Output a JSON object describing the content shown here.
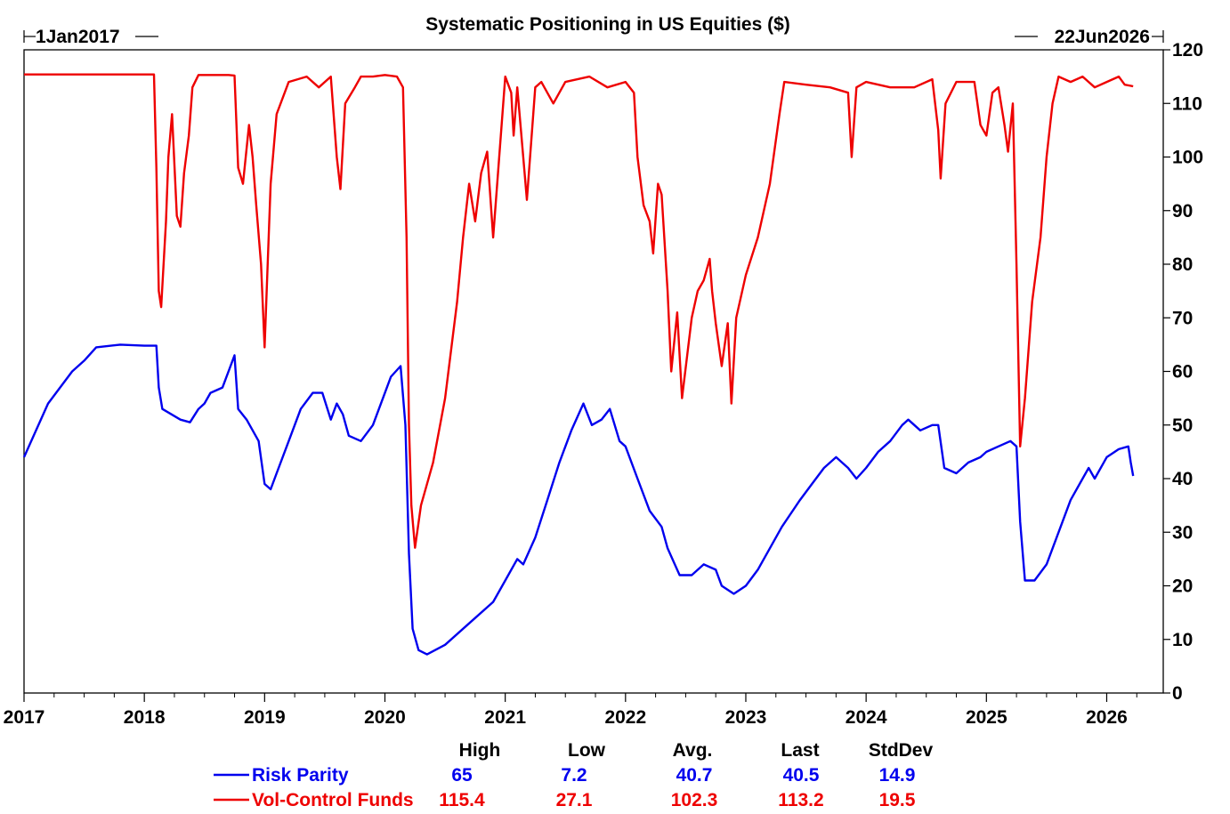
{
  "chart_data": {
    "type": "line",
    "title": "Systematic Positioning in US Equities ($)",
    "range_start_label": "1Jan2017",
    "range_end_label": "22Jun2026",
    "x_ticks": [
      "2017",
      "2018",
      "2019",
      "2020",
      "2021",
      "2022",
      "2023",
      "2024",
      "2025",
      "2026"
    ],
    "x_start_year": 2017,
    "x_end_year": 2026.47,
    "ylim": [
      0,
      120
    ],
    "y_ticks": [
      0,
      10,
      20,
      30,
      40,
      50,
      60,
      70,
      80,
      90,
      100,
      110,
      120
    ],
    "y_axis_position": "right",
    "grid": false,
    "stats_headers": [
      "High",
      "Low",
      "Avg.",
      "Last",
      "StdDev"
    ],
    "series": [
      {
        "name": "Risk Parity",
        "color": "#0000ee",
        "stats": [
          "65",
          "7.2",
          "40.7",
          "40.5",
          "14.9"
        ],
        "points": [
          [
            2017.0,
            44
          ],
          [
            2017.1,
            49
          ],
          [
            2017.2,
            54
          ],
          [
            2017.3,
            57
          ],
          [
            2017.4,
            60
          ],
          [
            2017.5,
            62
          ],
          [
            2017.6,
            64.5
          ],
          [
            2017.8,
            65
          ],
          [
            2018.0,
            64.8
          ],
          [
            2018.1,
            64.8
          ],
          [
            2018.12,
            57
          ],
          [
            2018.15,
            53
          ],
          [
            2018.3,
            51
          ],
          [
            2018.38,
            50.5
          ],
          [
            2018.45,
            53
          ],
          [
            2018.5,
            54
          ],
          [
            2018.55,
            56
          ],
          [
            2018.65,
            57
          ],
          [
            2018.75,
            63
          ],
          [
            2018.78,
            53
          ],
          [
            2018.85,
            51
          ],
          [
            2018.95,
            47
          ],
          [
            2019.0,
            39
          ],
          [
            2019.05,
            38
          ],
          [
            2019.1,
            41
          ],
          [
            2019.2,
            47
          ],
          [
            2019.3,
            53
          ],
          [
            2019.4,
            56
          ],
          [
            2019.48,
            56
          ],
          [
            2019.55,
            51
          ],
          [
            2019.6,
            54
          ],
          [
            2019.65,
            52
          ],
          [
            2019.7,
            48
          ],
          [
            2019.8,
            47
          ],
          [
            2019.9,
            50
          ],
          [
            2020.0,
            56
          ],
          [
            2020.05,
            59
          ],
          [
            2020.13,
            61
          ],
          [
            2020.17,
            50
          ],
          [
            2020.2,
            26
          ],
          [
            2020.23,
            12
          ],
          [
            2020.28,
            8
          ],
          [
            2020.35,
            7.2
          ],
          [
            2020.5,
            9
          ],
          [
            2020.7,
            13
          ],
          [
            2020.9,
            17
          ],
          [
            2021.0,
            21
          ],
          [
            2021.1,
            25
          ],
          [
            2021.15,
            24
          ],
          [
            2021.25,
            29
          ],
          [
            2021.35,
            36
          ],
          [
            2021.45,
            43
          ],
          [
            2021.55,
            49
          ],
          [
            2021.65,
            54
          ],
          [
            2021.72,
            50
          ],
          [
            2021.8,
            51
          ],
          [
            2021.87,
            53
          ],
          [
            2021.95,
            47
          ],
          [
            2022.0,
            46
          ],
          [
            2022.1,
            40
          ],
          [
            2022.2,
            34
          ],
          [
            2022.3,
            31
          ],
          [
            2022.35,
            27
          ],
          [
            2022.45,
            22
          ],
          [
            2022.55,
            22
          ],
          [
            2022.65,
            24
          ],
          [
            2022.75,
            23
          ],
          [
            2022.8,
            20
          ],
          [
            2022.9,
            18.5
          ],
          [
            2023.0,
            20
          ],
          [
            2023.1,
            23
          ],
          [
            2023.2,
            27
          ],
          [
            2023.3,
            31
          ],
          [
            2023.45,
            36
          ],
          [
            2023.55,
            39
          ],
          [
            2023.65,
            42
          ],
          [
            2023.75,
            44
          ],
          [
            2023.85,
            42
          ],
          [
            2023.92,
            40
          ],
          [
            2024.0,
            42
          ],
          [
            2024.1,
            45
          ],
          [
            2024.2,
            47
          ],
          [
            2024.3,
            50
          ],
          [
            2024.35,
            51
          ],
          [
            2024.45,
            49
          ],
          [
            2024.55,
            50
          ],
          [
            2024.6,
            50
          ],
          [
            2024.65,
            42
          ],
          [
            2024.75,
            41
          ],
          [
            2024.85,
            43
          ],
          [
            2024.95,
            44
          ],
          [
            2025.0,
            45
          ],
          [
            2025.1,
            46
          ],
          [
            2025.2,
            47
          ],
          [
            2025.25,
            46
          ],
          [
            2025.28,
            32
          ],
          [
            2025.32,
            21
          ],
          [
            2025.4,
            21
          ],
          [
            2025.5,
            24
          ],
          [
            2025.6,
            30
          ],
          [
            2025.7,
            36
          ],
          [
            2025.8,
            40
          ],
          [
            2025.85,
            42
          ],
          [
            2025.9,
            40
          ],
          [
            2026.0,
            44
          ],
          [
            2026.1,
            45.5
          ],
          [
            2026.18,
            46
          ],
          [
            2026.2,
            43
          ],
          [
            2026.22,
            40.5
          ]
        ]
      },
      {
        "name": "Vol-Control Funds",
        "color": "#ee0000",
        "stats": [
          "115.4",
          "27.1",
          "102.3",
          "113.2",
          "19.5"
        ],
        "points": [
          [
            2017.0,
            115.4
          ],
          [
            2017.3,
            115.4
          ],
          [
            2017.7,
            115.4
          ],
          [
            2018.08,
            115.4
          ],
          [
            2018.1,
            98
          ],
          [
            2018.12,
            75
          ],
          [
            2018.14,
            72
          ],
          [
            2018.18,
            88
          ],
          [
            2018.2,
            100
          ],
          [
            2018.23,
            108
          ],
          [
            2018.27,
            89
          ],
          [
            2018.3,
            87
          ],
          [
            2018.33,
            97
          ],
          [
            2018.37,
            104
          ],
          [
            2018.4,
            113
          ],
          [
            2018.45,
            115.3
          ],
          [
            2018.55,
            115.3
          ],
          [
            2018.7,
            115.3
          ],
          [
            2018.75,
            115.2
          ],
          [
            2018.78,
            98
          ],
          [
            2018.82,
            95
          ],
          [
            2018.87,
            106
          ],
          [
            2018.9,
            100
          ],
          [
            2018.93,
            91
          ],
          [
            2018.97,
            80
          ],
          [
            2019.0,
            64.5
          ],
          [
            2019.05,
            95
          ],
          [
            2019.1,
            108
          ],
          [
            2019.2,
            114
          ],
          [
            2019.35,
            115
          ],
          [
            2019.45,
            113
          ],
          [
            2019.55,
            115
          ],
          [
            2019.6,
            100
          ],
          [
            2019.63,
            94
          ],
          [
            2019.67,
            110
          ],
          [
            2019.75,
            113
          ],
          [
            2019.8,
            115
          ],
          [
            2019.9,
            115
          ],
          [
            2020.0,
            115.3
          ],
          [
            2020.1,
            115
          ],
          [
            2020.15,
            113
          ],
          [
            2020.18,
            85
          ],
          [
            2020.2,
            50
          ],
          [
            2020.22,
            35
          ],
          [
            2020.25,
            27.1
          ],
          [
            2020.3,
            35
          ],
          [
            2020.4,
            43
          ],
          [
            2020.5,
            55
          ],
          [
            2020.6,
            73
          ],
          [
            2020.65,
            85
          ],
          [
            2020.7,
            95
          ],
          [
            2020.75,
            88
          ],
          [
            2020.8,
            97
          ],
          [
            2020.85,
            101
          ],
          [
            2020.9,
            85
          ],
          [
            2020.95,
            100
          ],
          [
            2021.0,
            115
          ],
          [
            2021.05,
            112
          ],
          [
            2021.07,
            104
          ],
          [
            2021.1,
            113
          ],
          [
            2021.15,
            100
          ],
          [
            2021.18,
            92
          ],
          [
            2021.25,
            113
          ],
          [
            2021.3,
            114
          ],
          [
            2021.4,
            110
          ],
          [
            2021.5,
            114
          ],
          [
            2021.7,
            115
          ],
          [
            2021.85,
            113
          ],
          [
            2022.0,
            114
          ],
          [
            2022.07,
            112
          ],
          [
            2022.1,
            100
          ],
          [
            2022.15,
            91
          ],
          [
            2022.2,
            88
          ],
          [
            2022.23,
            82
          ],
          [
            2022.27,
            95
          ],
          [
            2022.3,
            93
          ],
          [
            2022.35,
            75
          ],
          [
            2022.38,
            60
          ],
          [
            2022.43,
            71
          ],
          [
            2022.47,
            55
          ],
          [
            2022.55,
            70
          ],
          [
            2022.6,
            75
          ],
          [
            2022.65,
            77
          ],
          [
            2022.7,
            81
          ],
          [
            2022.72,
            75
          ],
          [
            2022.75,
            69
          ],
          [
            2022.8,
            61
          ],
          [
            2022.85,
            69
          ],
          [
            2022.88,
            54
          ],
          [
            2022.92,
            70
          ],
          [
            2023.0,
            78
          ],
          [
            2023.1,
            85
          ],
          [
            2023.2,
            95
          ],
          [
            2023.28,
            108
          ],
          [
            2023.32,
            114
          ],
          [
            2023.5,
            113.5
          ],
          [
            2023.7,
            113
          ],
          [
            2023.85,
            112
          ],
          [
            2023.88,
            100
          ],
          [
            2023.92,
            113
          ],
          [
            2024.0,
            114
          ],
          [
            2024.2,
            113
          ],
          [
            2024.4,
            113
          ],
          [
            2024.55,
            114.5
          ],
          [
            2024.6,
            105
          ],
          [
            2024.62,
            96
          ],
          [
            2024.66,
            110
          ],
          [
            2024.75,
            114
          ],
          [
            2024.85,
            114
          ],
          [
            2024.9,
            114
          ],
          [
            2024.95,
            106
          ],
          [
            2025.0,
            104
          ],
          [
            2025.05,
            112
          ],
          [
            2025.1,
            113
          ],
          [
            2025.15,
            106
          ],
          [
            2025.18,
            101
          ],
          [
            2025.22,
            110
          ],
          [
            2025.25,
            80
          ],
          [
            2025.28,
            46
          ],
          [
            2025.32,
            55
          ],
          [
            2025.38,
            73
          ],
          [
            2025.45,
            85
          ],
          [
            2025.5,
            100
          ],
          [
            2025.55,
            110
          ],
          [
            2025.6,
            115
          ],
          [
            2025.7,
            114
          ],
          [
            2025.8,
            115
          ],
          [
            2025.9,
            113
          ],
          [
            2026.0,
            114
          ],
          [
            2026.1,
            115
          ],
          [
            2026.15,
            113.5
          ],
          [
            2026.22,
            113.2
          ]
        ]
      }
    ]
  }
}
